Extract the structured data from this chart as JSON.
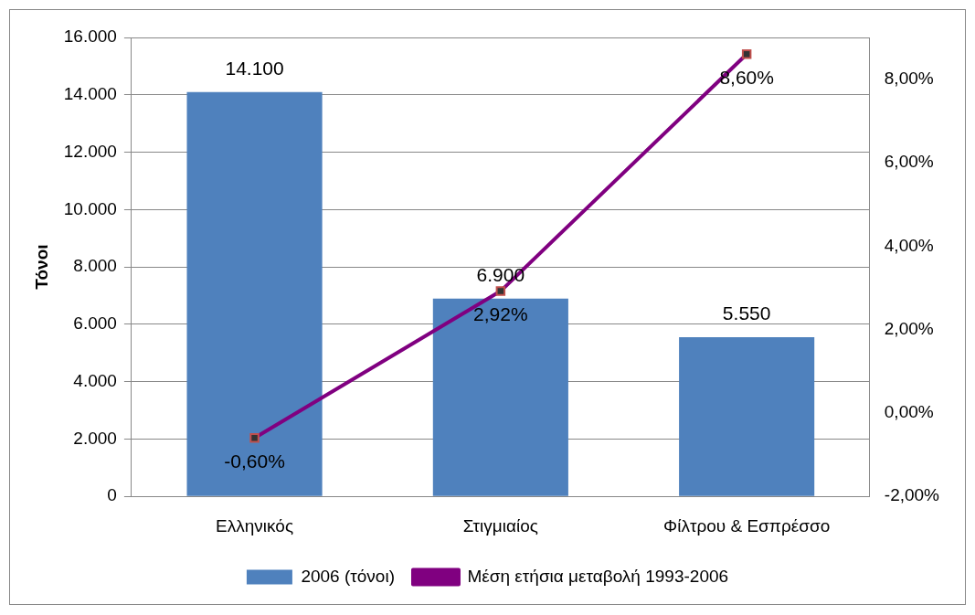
{
  "chart_data": {
    "type": "bar",
    "categories": [
      "Ελληνικός",
      "Στιγμιαίος",
      "Φίλτρου & Εσπρέσσο"
    ],
    "ylabel": "Τόνοι",
    "series": [
      {
        "name": "2006 (τόνοι)",
        "color": "#4f81bd",
        "values": [
          14100,
          6900,
          5550
        ],
        "value_labels": [
          "14.100",
          "6.900",
          "5.550"
        ]
      },
      {
        "name": "Μέση ετήσια μεταβολή 1993-2006",
        "type": "line",
        "axis": "y2",
        "color": "#800080",
        "marker": "square",
        "values": [
          -0.6,
          2.92,
          8.6
        ],
        "value_labels": [
          "-0,60%",
          "2,92%",
          "8,60%"
        ]
      }
    ],
    "ylim": [
      0,
      16000
    ],
    "yticks": [
      {
        "value": 0,
        "label": "0"
      },
      {
        "value": 2000,
        "label": "2.000"
      },
      {
        "value": 4000,
        "label": "4.000"
      },
      {
        "value": 6000,
        "label": "6.000"
      },
      {
        "value": 8000,
        "label": "8.000"
      },
      {
        "value": 10000,
        "label": "10.000"
      },
      {
        "value": 12000,
        "label": "12.000"
      },
      {
        "value": 14000,
        "label": "14.000"
      },
      {
        "value": 16000,
        "label": "16.000"
      }
    ],
    "y2lim": [
      -2,
      9
    ],
    "y2ticks": [
      {
        "value": -2,
        "label": "-2,00%"
      },
      {
        "value": 0,
        "label": "0,00%"
      },
      {
        "value": 2,
        "label": "2,00%"
      },
      {
        "value": 4,
        "label": "4,00%"
      },
      {
        "value": 6,
        "label": "6,00%"
      },
      {
        "value": 8,
        "label": "8,00%"
      }
    ],
    "grid": "y",
    "legend": "bottom"
  }
}
